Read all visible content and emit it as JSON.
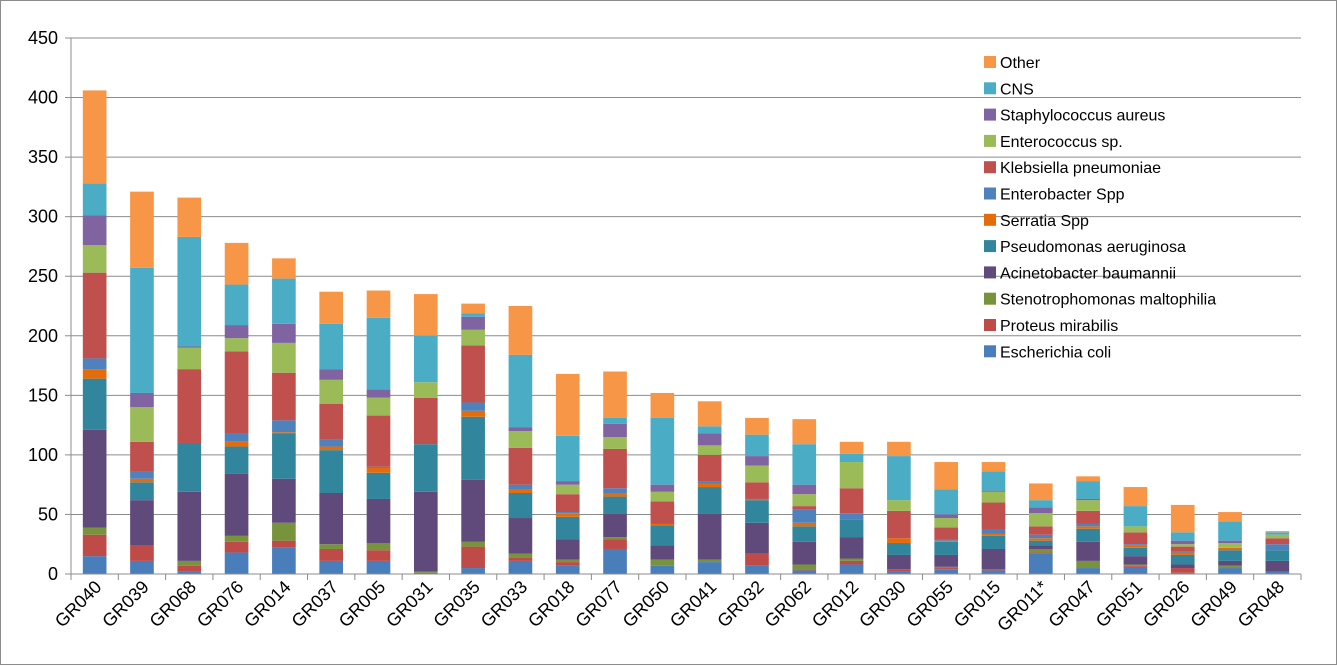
{
  "chart_data": {
    "type": "bar",
    "stacked": true,
    "title": "",
    "xlabel": "",
    "ylabel": "",
    "ylim": [
      0,
      450
    ],
    "yticks": [
      0,
      50,
      100,
      150,
      200,
      250,
      300,
      350,
      400,
      450
    ],
    "grid": true,
    "legend_position": "top-right",
    "categories": [
      "GR040",
      "GR039",
      "GR068",
      "GR076",
      "GR014",
      "GR037",
      "GR005",
      "GR031",
      "GR035",
      "GR033",
      "GR018",
      "GR077",
      "GR050",
      "GR041",
      "GR032",
      "GR062",
      "GR012",
      "GR030",
      "GR055",
      "GR015",
      "GR011*",
      "GR047",
      "GR051",
      "GR026",
      "GR049",
      "GR048"
    ],
    "series": [
      {
        "name": "Escherichia coli",
        "color": "#4a7ebb",
        "values": [
          15,
          11,
          2,
          18,
          22,
          11,
          11,
          1,
          5,
          11,
          7,
          21,
          7,
          10,
          7,
          3,
          8,
          2,
          4,
          3,
          17,
          5,
          6,
          1,
          5,
          2
        ]
      },
      {
        "name": "Proteus mirabilis",
        "color": "#be4b48",
        "values": [
          18,
          13,
          5,
          9,
          6,
          10,
          9,
          0,
          18,
          3,
          3,
          8,
          0,
          0,
          10,
          1,
          3,
          2,
          1,
          1,
          1,
          0,
          1,
          4,
          0,
          0
        ]
      },
      {
        "name": "Stenotrophomonas maltophilia",
        "color": "#77933c",
        "values": [
          6,
          0,
          4,
          5,
          15,
          4,
          6,
          1,
          4,
          3,
          2,
          2,
          5,
          2,
          0,
          4,
          2,
          0,
          1,
          0,
          3,
          6,
          1,
          0,
          2,
          0
        ]
      },
      {
        "name": "Acinetobacter baumannii",
        "color": "#604a7b",
        "values": [
          82,
          38,
          58,
          52,
          37,
          43,
          37,
          67,
          52,
          30,
          17,
          20,
          12,
          39,
          26,
          19,
          18,
          12,
          10,
          17,
          3,
          16,
          7,
          3,
          4,
          9
        ]
      },
      {
        "name": "Pseudomonas aeruginosa",
        "color": "#31859c",
        "values": [
          43,
          15,
          41,
          23,
          38,
          36,
          22,
          40,
          53,
          21,
          19,
          14,
          17,
          22,
          19,
          13,
          15,
          10,
          11,
          11,
          4,
          11,
          7,
          8,
          9,
          9
        ]
      },
      {
        "name": "Serratia Spp",
        "color": "#e46c0a",
        "values": [
          8,
          3,
          0,
          4,
          1,
          3,
          4,
          0,
          5,
          3,
          3,
          3,
          1,
          3,
          1,
          3,
          0,
          4,
          1,
          2,
          2,
          2,
          2,
          2,
          2,
          0
        ]
      },
      {
        "name": "Enterobacter Spp",
        "color": "#4f81bd",
        "values": [
          9,
          6,
          0,
          7,
          10,
          6,
          1,
          0,
          7,
          4,
          1,
          4,
          0,
          2,
          0,
          11,
          5,
          0,
          1,
          3,
          3,
          2,
          1,
          1,
          0,
          5
        ]
      },
      {
        "name": "Klebsiella pneumoniae",
        "color": "#c0504d",
        "values": [
          72,
          25,
          62,
          69,
          40,
          30,
          43,
          39,
          48,
          31,
          15,
          33,
          19,
          22,
          14,
          3,
          21,
          23,
          10,
          23,
          7,
          11,
          10,
          4,
          0,
          5
        ]
      },
      {
        "name": "Enterococcus sp.",
        "color": "#9bbb59",
        "values": [
          23,
          29,
          18,
          11,
          25,
          20,
          15,
          13,
          13,
          14,
          8,
          10,
          8,
          8,
          14,
          10,
          22,
          9,
          8,
          9,
          11,
          9,
          5,
          2,
          4,
          3
        ]
      },
      {
        "name": "Staphylococcus aureus",
        "color": "#8064a2",
        "values": [
          25,
          12,
          1,
          11,
          16,
          9,
          7,
          0,
          11,
          3,
          3,
          11,
          6,
          10,
          8,
          8,
          0,
          0,
          3,
          1,
          5,
          1,
          0,
          3,
          2,
          0
        ]
      },
      {
        "name": "CNS",
        "color": "#4bacc6",
        "values": [
          27,
          105,
          92,
          34,
          38,
          38,
          60,
          39,
          3,
          61,
          38,
          5,
          56,
          6,
          18,
          34,
          7,
          37,
          21,
          16,
          6,
          15,
          17,
          7,
          16,
          2
        ]
      },
      {
        "name": "Other",
        "color": "#f79646",
        "values": [
          78,
          64,
          33,
          35,
          17,
          27,
          23,
          35,
          8,
          41,
          52,
          39,
          21,
          21,
          14,
          21,
          10,
          12,
          23,
          8,
          14,
          4,
          16,
          23,
          8,
          1
        ]
      }
    ]
  }
}
